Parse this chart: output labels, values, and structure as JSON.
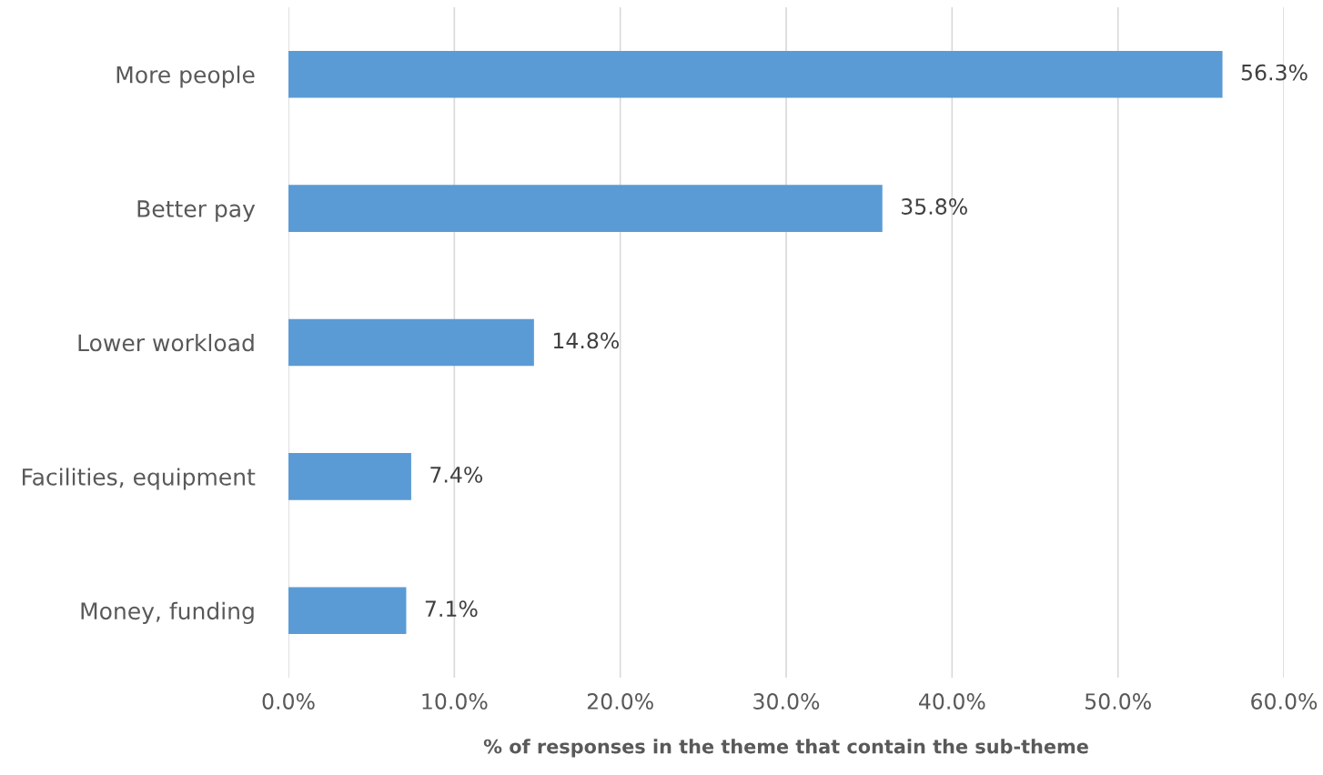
{
  "chart_data": {
    "type": "bar",
    "orientation": "horizontal",
    "categories": [
      "More people",
      "Better pay",
      "Lower workload",
      "Facilities, equipment",
      "Money, funding"
    ],
    "values": [
      56.3,
      35.8,
      14.8,
      7.4,
      7.1
    ],
    "value_labels": [
      "56.3%",
      "35.8%",
      "14.8%",
      "7.4%",
      "7.1%"
    ],
    "color": "#5b9bd5",
    "xlabel": "% of responses in the theme that contain the sub-theme",
    "xlim": [
      0,
      60
    ],
    "xticks": [
      {
        "value": 0,
        "label": "0.0%"
      },
      {
        "value": 10,
        "label": "10.0%"
      },
      {
        "value": 20,
        "label": "20.0%"
      },
      {
        "value": 30,
        "label": "30.0%"
      },
      {
        "value": 40,
        "label": "40.0%"
      },
      {
        "value": 50,
        "label": "50.0%"
      },
      {
        "value": 60,
        "label": "60.0%"
      }
    ],
    "grid": "x",
    "legend": false
  }
}
